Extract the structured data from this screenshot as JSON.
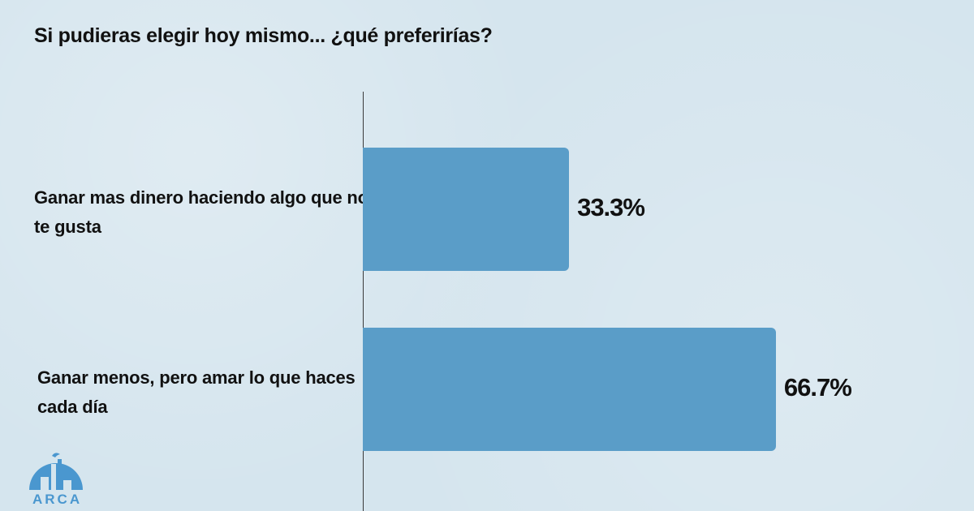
{
  "chart_data": {
    "type": "bar",
    "orientation": "horizontal",
    "title": "Si pudieras elegir hoy mismo... ¿qué preferirías?",
    "categories": [
      "Ganar mas dinero haciendo algo que no te gusta",
      "Ganar menos, pero amar lo que haces cada día"
    ],
    "values": [
      33.3,
      66.7
    ],
    "value_labels": [
      "33.3%",
      "66.7%"
    ],
    "unit": "%",
    "xlim": [
      0,
      100
    ],
    "grid": false,
    "legend": "none",
    "bar_color": "#5a9dc8",
    "background_color": "#d5e5ee"
  },
  "logo": {
    "text": "ARCA",
    "color": "#4a97cf"
  }
}
